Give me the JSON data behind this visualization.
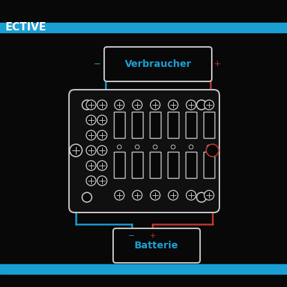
{
  "bg_color": "#080808",
  "blue_stripe_color": "#1a9fd4",
  "white_color": "#ffffff",
  "blue_line_color": "#1a9fd4",
  "red_line_color": "#c0392b",
  "outline_color": "#c8c8c8",
  "fuse_box_face": "#101010",
  "title": "ECTIVE",
  "label_verbraucher": "Verbraucher",
  "label_batterie": "Batterie",
  "label_minus": "−",
  "label_plus": "+"
}
